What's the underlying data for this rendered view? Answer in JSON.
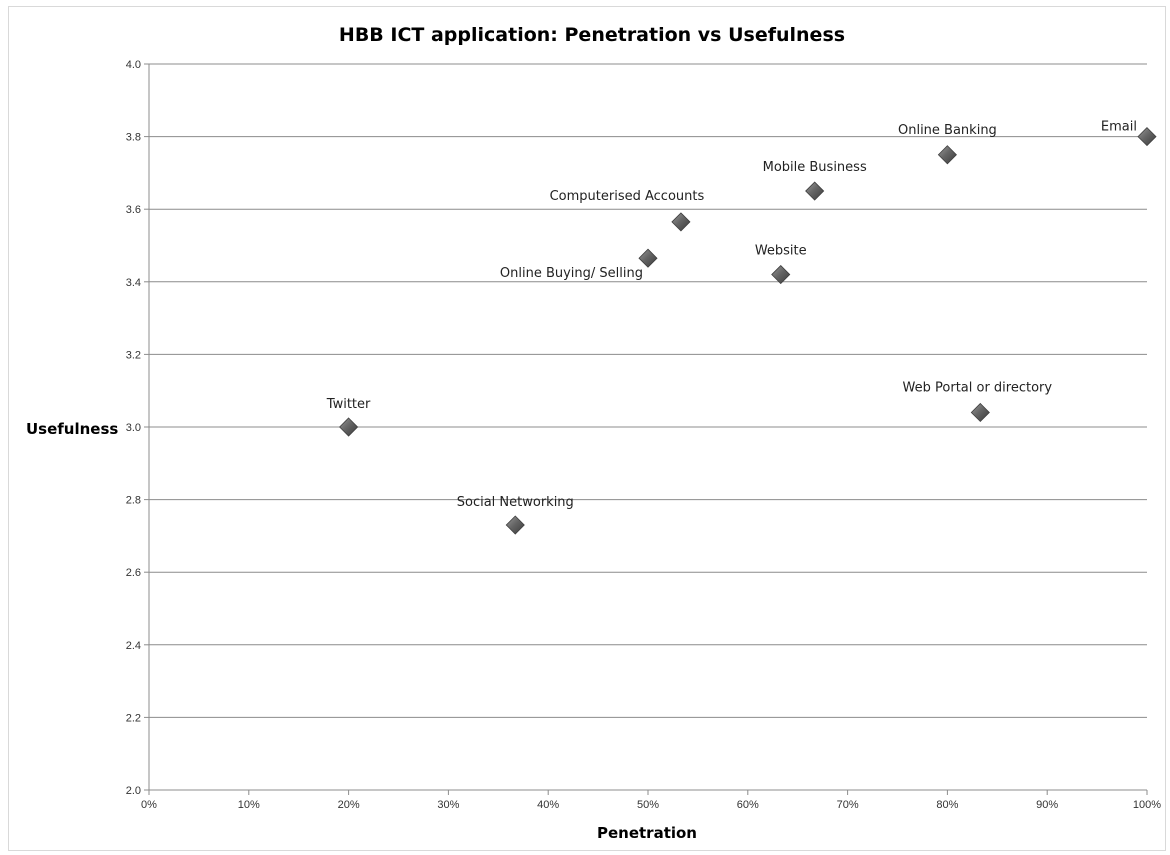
{
  "chart_data": {
    "type": "scatter",
    "title": "HBB ICT application: Penetration vs Usefulness",
    "xlabel": "Penetration",
    "ylabel": "Usefulness",
    "xlim": [
      0,
      100
    ],
    "ylim": [
      2.0,
      4.0
    ],
    "x_unit": "%",
    "x_ticks": [
      "0%",
      "10%",
      "20%",
      "30%",
      "40%",
      "50%",
      "60%",
      "70%",
      "80%",
      "90%",
      "100%"
    ],
    "y_ticks": [
      "2.0",
      "2.2",
      "2.4",
      "2.6",
      "2.8",
      "3.0",
      "3.2",
      "3.4",
      "3.6",
      "3.8",
      "4.0"
    ],
    "grid": "horizontal",
    "legend": "none",
    "marker": "diamond",
    "marker_color": "#595959",
    "points": [
      {
        "label": "Twitter",
        "x": 20,
        "y": 3.0
      },
      {
        "label": "Social Networking",
        "x": 36.7,
        "y": 2.73
      },
      {
        "label": "Online Buying/ Selling",
        "x": 50,
        "y": 3.465
      },
      {
        "label": "Computerised Accounts",
        "x": 53.3,
        "y": 3.565
      },
      {
        "label": "Website",
        "x": 63.3,
        "y": 3.42
      },
      {
        "label": "Mobile Business",
        "x": 66.7,
        "y": 3.65
      },
      {
        "label": "Online Banking",
        "x": 80,
        "y": 3.75
      },
      {
        "label": "Web Portal or directory",
        "x": 83.3,
        "y": 3.04
      },
      {
        "label": "Email",
        "x": 100,
        "y": 3.8
      }
    ]
  }
}
